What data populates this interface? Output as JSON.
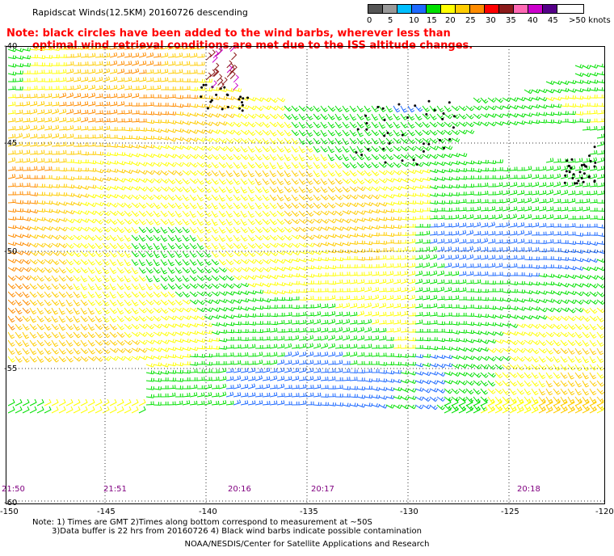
{
  "title": "Rapidscat Winds(12.5KM) 20160726 descending",
  "colorbar": {
    "colors": [
      "#555555",
      "#999999",
      "#00bfff",
      "#1e6aff",
      "#00e000",
      "#ffff00",
      "#ffcc00",
      "#ff8c00",
      "#ff0000",
      "#8b1a1a",
      "#ff69b4",
      "#cc00cc",
      "#550088"
    ],
    "labels": [
      "0",
      "5",
      "10",
      "15",
      "20",
      "25",
      "30",
      "35",
      "40",
      "45",
      ">50 knots"
    ]
  },
  "note": {
    "line1": "Note: black circles have been added to the wind barbs, wherever less than",
    "line2": "optimal wind retrieval conditions are met due to the ISS altitude changes."
  },
  "axes": {
    "lat_labels": [
      "-40",
      "-45",
      "-50",
      "-55",
      "-60"
    ],
    "lon_labels": [
      "-150",
      "-145",
      "-140",
      "-135",
      "-130",
      "-125",
      "-120"
    ]
  },
  "times": [
    "21:50",
    "21:51",
    "20:16",
    "20:17",
    "20:18"
  ],
  "bottom_notes": {
    "line1": "Note: 1) Times are GMT 2)Times along bottom correspond to measurement at ~50S",
    "line2": "3)Data buffer is 22 hrs from 20160726 4) Black wind barbs indicate possible contamination"
  },
  "credit": "NOAA/NESDIS/Center for Satellite Applications and Research"
}
